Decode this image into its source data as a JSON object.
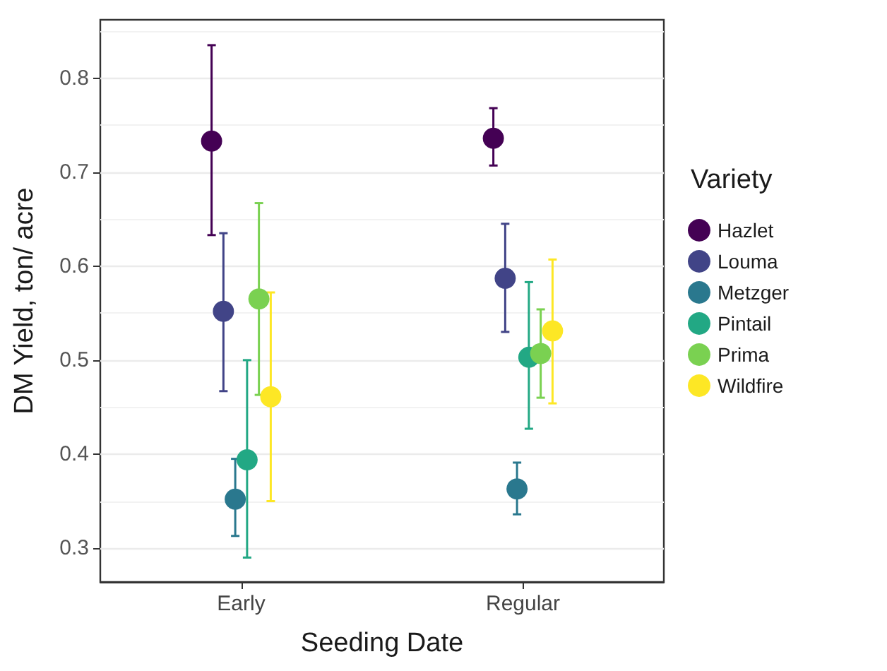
{
  "chart_data": {
    "type": "scatter",
    "xlabel": "Seeding Date",
    "ylabel": "DM Yield, ton/ acre",
    "legend_title": "Variety",
    "categories": [
      "Early",
      "Regular"
    ],
    "series": [
      {
        "name": "Hazlet",
        "color": "#440154",
        "values": [
          0.733,
          0.736
        ],
        "errors": [
          [
            0.633,
            0.835
          ],
          [
            0.707,
            0.768
          ]
        ]
      },
      {
        "name": "Louma",
        "color": "#414487",
        "values": [
          0.552,
          0.587
        ],
        "errors": [
          [
            0.467,
            0.635
          ],
          [
            0.53,
            0.645
          ]
        ]
      },
      {
        "name": "Metzger",
        "color": "#2a788e",
        "values": [
          0.352,
          0.363
        ],
        "errors": [
          [
            0.313,
            0.395
          ],
          [
            0.336,
            0.391
          ]
        ]
      },
      {
        "name": "Pintail",
        "color": "#22a884",
        "values": [
          0.394,
          0.503
        ],
        "errors": [
          [
            0.29,
            0.5
          ],
          [
            0.427,
            0.583
          ]
        ]
      },
      {
        "name": "Prima",
        "color": "#7ad151",
        "values": [
          0.565,
          0.507
        ],
        "errors": [
          [
            0.463,
            0.667
          ],
          [
            0.46,
            0.554
          ]
        ]
      },
      {
        "name": "Wildfire",
        "color": "#fde725",
        "values": [
          0.461,
          0.531
        ],
        "errors": [
          [
            0.35,
            0.572
          ],
          [
            0.454,
            0.607
          ]
        ]
      }
    ],
    "ylim": [
      0.264,
      0.862
    ],
    "yticks": [
      0.3,
      0.4,
      0.5,
      0.6,
      0.7,
      0.8
    ],
    "grid": "y",
    "legend": "right",
    "marker": "circle"
  }
}
